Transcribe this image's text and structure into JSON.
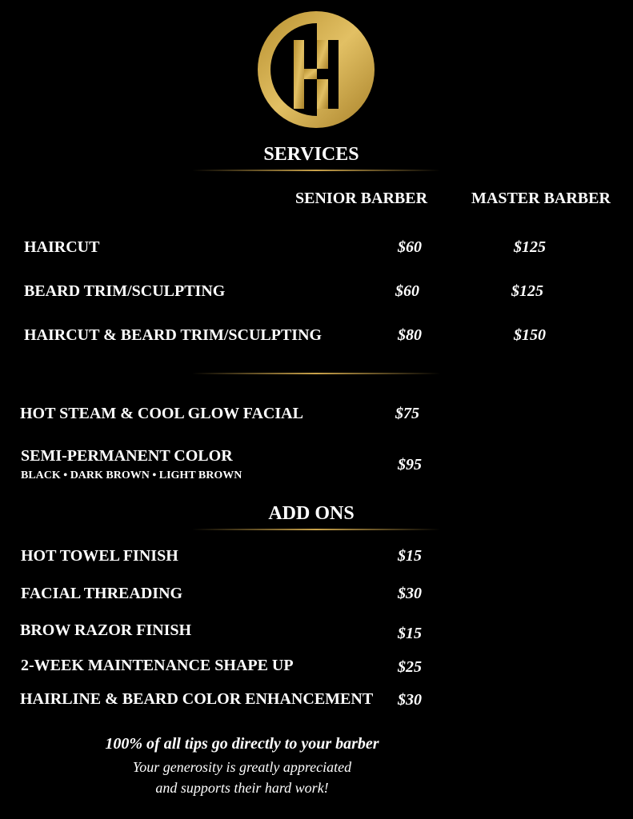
{
  "logo": {
    "letter": "H",
    "color": "#d4ac4a"
  },
  "services": {
    "title": "SERVICES",
    "columns": [
      "SENIOR BARBER",
      "MASTER BARBER"
    ],
    "items": [
      {
        "name": "HAIRCUT",
        "senior": "$60",
        "master": "$125"
      },
      {
        "name": "BEARD TRIM/SCULPTING",
        "senior": "$60",
        "master": "$125"
      },
      {
        "name": "HAIRCUT & BEARD TRIM/SCULPTING",
        "senior": "$80",
        "master": "$150"
      }
    ],
    "extras": [
      {
        "name": "HOT STEAM & COOL GLOW FACIAL",
        "price": "$75"
      },
      {
        "name": "SEMI-PERMANENT COLOR",
        "sub": "BLACK • DARK BROWN • LIGHT BROWN",
        "price": "$95"
      }
    ]
  },
  "addons": {
    "title": "ADD ONS",
    "items": [
      {
        "name": "HOT TOWEL FINISH",
        "price": "$15"
      },
      {
        "name": "FACIAL THREADING",
        "price": "$30"
      },
      {
        "name": "BROW RAZOR FINISH",
        "price": "$15"
      },
      {
        "name": "2-WEEK MAINTENANCE SHAPE UP",
        "price": "$25"
      },
      {
        "name": "HAIRLINE & BEARD COLOR ENHANCEMENT",
        "price": "$30"
      }
    ]
  },
  "footer": {
    "line1": "100% of all tips go directly to your barber",
    "line2": "Your generosity is greatly appreciated",
    "line3": "and supports their hard work!"
  },
  "accent": "#c9a24a"
}
